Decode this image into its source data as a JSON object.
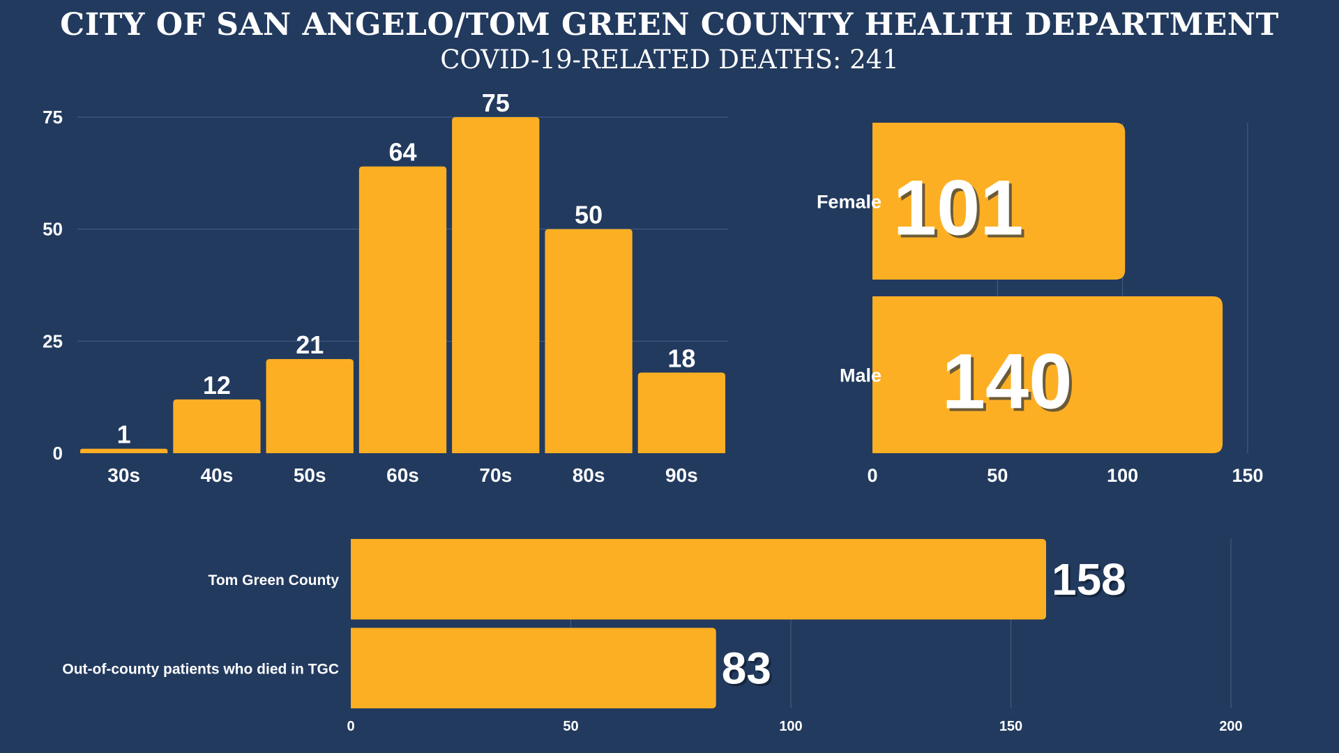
{
  "header": {
    "title": "CITY OF SAN ANGELO/TOM GREEN COUNTY HEALTH DEPARTMENT",
    "subtitle": "COVID-19-RELATED DEATHS: 241"
  },
  "colors": {
    "background": "#223a5e",
    "bar": "#fdaf24",
    "text": "#ffffff",
    "grid": "#4a6082"
  },
  "chart_data": [
    {
      "id": "age",
      "type": "bar",
      "categories": [
        "30s",
        "40s",
        "50s",
        "60s",
        "70s",
        "80s",
        "90s"
      ],
      "values": [
        1,
        12,
        21,
        64,
        75,
        50,
        18
      ],
      "ylim": [
        0,
        75
      ],
      "yticks": [
        0,
        25,
        50,
        75
      ],
      "grid": true
    },
    {
      "id": "sex",
      "type": "bar",
      "orientation": "horizontal",
      "categories": [
        "Female",
        "Male"
      ],
      "values": [
        101,
        140
      ],
      "xlim": [
        0,
        150
      ],
      "xticks": [
        0,
        50,
        100,
        150
      ],
      "grid": true
    },
    {
      "id": "residence",
      "type": "bar",
      "orientation": "horizontal",
      "categories": [
        "Tom Green County",
        "Out-of-county patients who died in TGC"
      ],
      "values": [
        158,
        83
      ],
      "xlim": [
        0,
        200
      ],
      "xticks": [
        0,
        50,
        100,
        150,
        200
      ],
      "grid": true
    }
  ]
}
